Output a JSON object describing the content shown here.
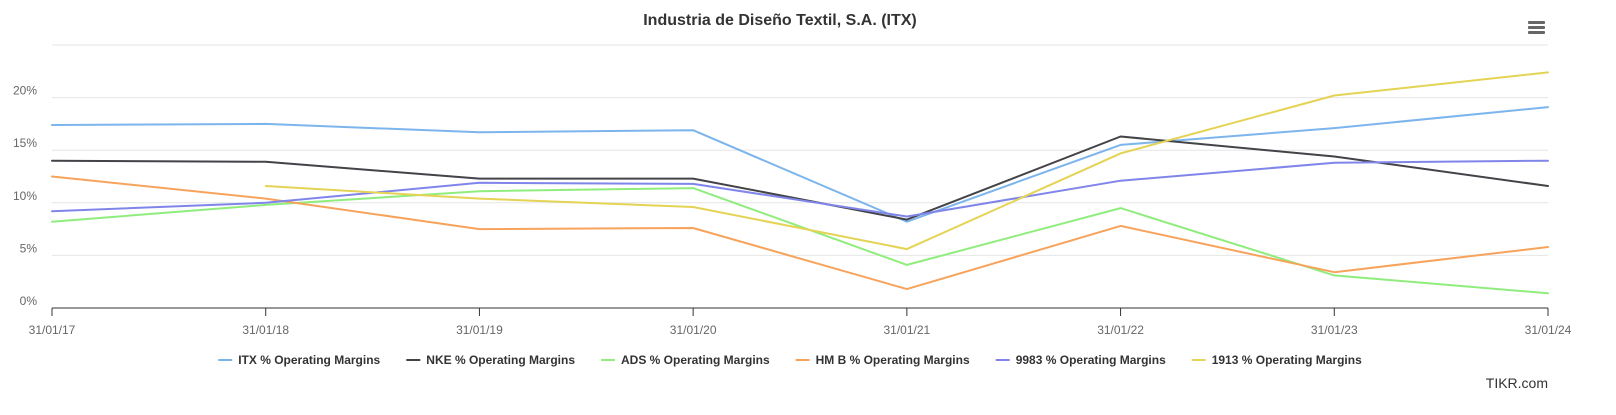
{
  "chart_data": {
    "type": "line",
    "title": "Industria de Diseño Textil, S.A. (ITX)",
    "x": [
      "31/01/17",
      "31/01/18",
      "31/01/19",
      "31/01/20",
      "31/01/21",
      "31/01/22",
      "31/01/23",
      "31/01/24"
    ],
    "y_ticks": [
      "0%",
      "5%",
      "10%",
      "15%",
      "20%"
    ],
    "ylim": [
      0,
      25
    ],
    "grid": true,
    "legend": "bottom-center",
    "series": [
      {
        "name": "ITX % Operating Margins",
        "color": "#7cb5ec",
        "values": [
          17.4,
          17.5,
          16.7,
          16.9,
          8.2,
          15.5,
          17.1,
          19.1
        ]
      },
      {
        "name": "NKE % Operating Margins",
        "color": "#434348",
        "values": [
          14.0,
          13.9,
          12.3,
          12.3,
          8.4,
          16.3,
          14.4,
          11.6
        ]
      },
      {
        "name": "ADS % Operating Margins",
        "color": "#90ed7d",
        "values": [
          8.2,
          9.8,
          11.1,
          11.4,
          4.1,
          9.5,
          3.1,
          1.4
        ]
      },
      {
        "name": "HM B % Operating Margins",
        "color": "#f7a35c",
        "values": [
          12.5,
          10.4,
          7.5,
          7.6,
          1.8,
          7.8,
          3.4,
          5.8
        ]
      },
      {
        "name": "9983 % Operating Margins",
        "color": "#8085e9",
        "values": [
          9.2,
          10.0,
          11.9,
          11.8,
          8.7,
          12.1,
          13.8,
          14.0
        ]
      },
      {
        "name": "1913 % Operating Margins",
        "color": "#e4d354",
        "values": [
          null,
          11.6,
          10.4,
          9.6,
          5.6,
          14.7,
          20.2,
          22.4
        ]
      }
    ]
  },
  "credit": "TIKR.com",
  "menu_icon": "hamburger-menu-icon"
}
